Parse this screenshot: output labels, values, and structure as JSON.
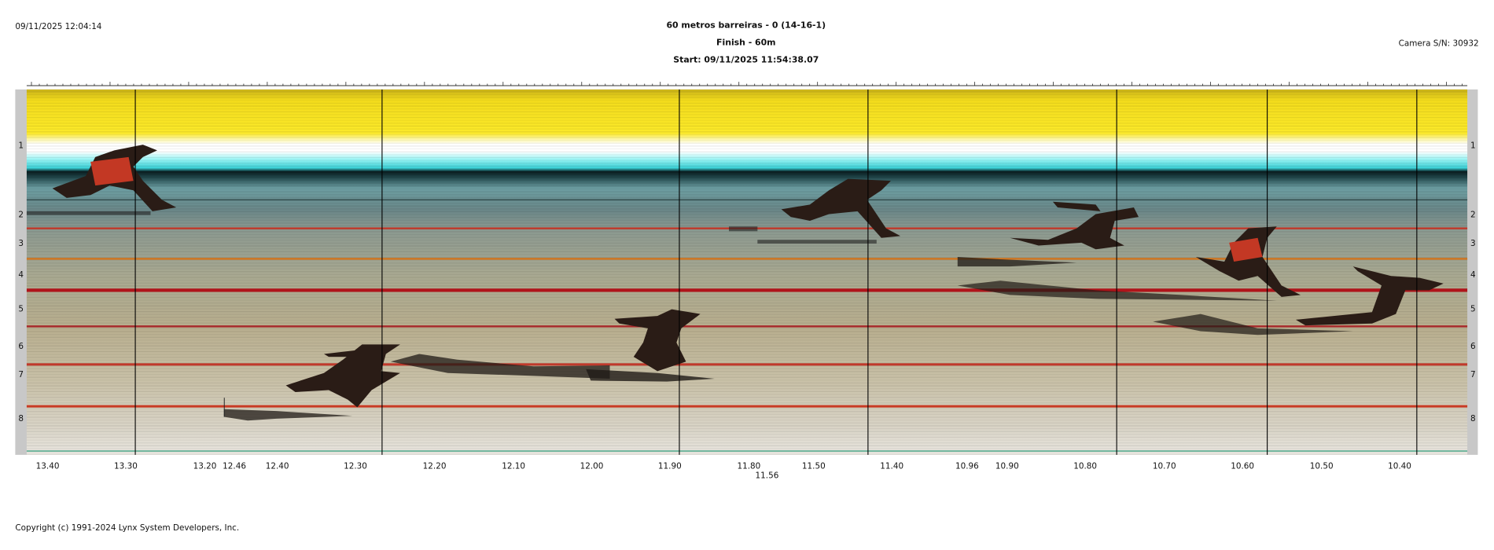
{
  "header": {
    "timestamp": "09/11/2025 12:04:14",
    "title": "60 metros barreiras - 0 (14-16-1)",
    "subtitle": "Finish - 60m",
    "start": "Start: 09/11/2025 11:54:38.07",
    "camera": "Camera S/N: 30932"
  },
  "lanes": [
    "1",
    "2",
    "3",
    "4",
    "5",
    "6",
    "7",
    "8"
  ],
  "time_axis": {
    "labels": [
      "13.40",
      "13.30",
      "13.20",
      "12.46",
      "12.40",
      "12.30",
      "12.20",
      "12.10",
      "12.00",
      "11.90",
      "11.80",
      "11.56",
      "11.50",
      "11.40",
      "10.96",
      "10.90",
      "10.80",
      "10.70",
      "10.60",
      "10.50",
      "10.40"
    ]
  },
  "footer": {
    "copyright": "Copyright (c) 1991-2024 Lynx System Developers, Inc."
  }
}
